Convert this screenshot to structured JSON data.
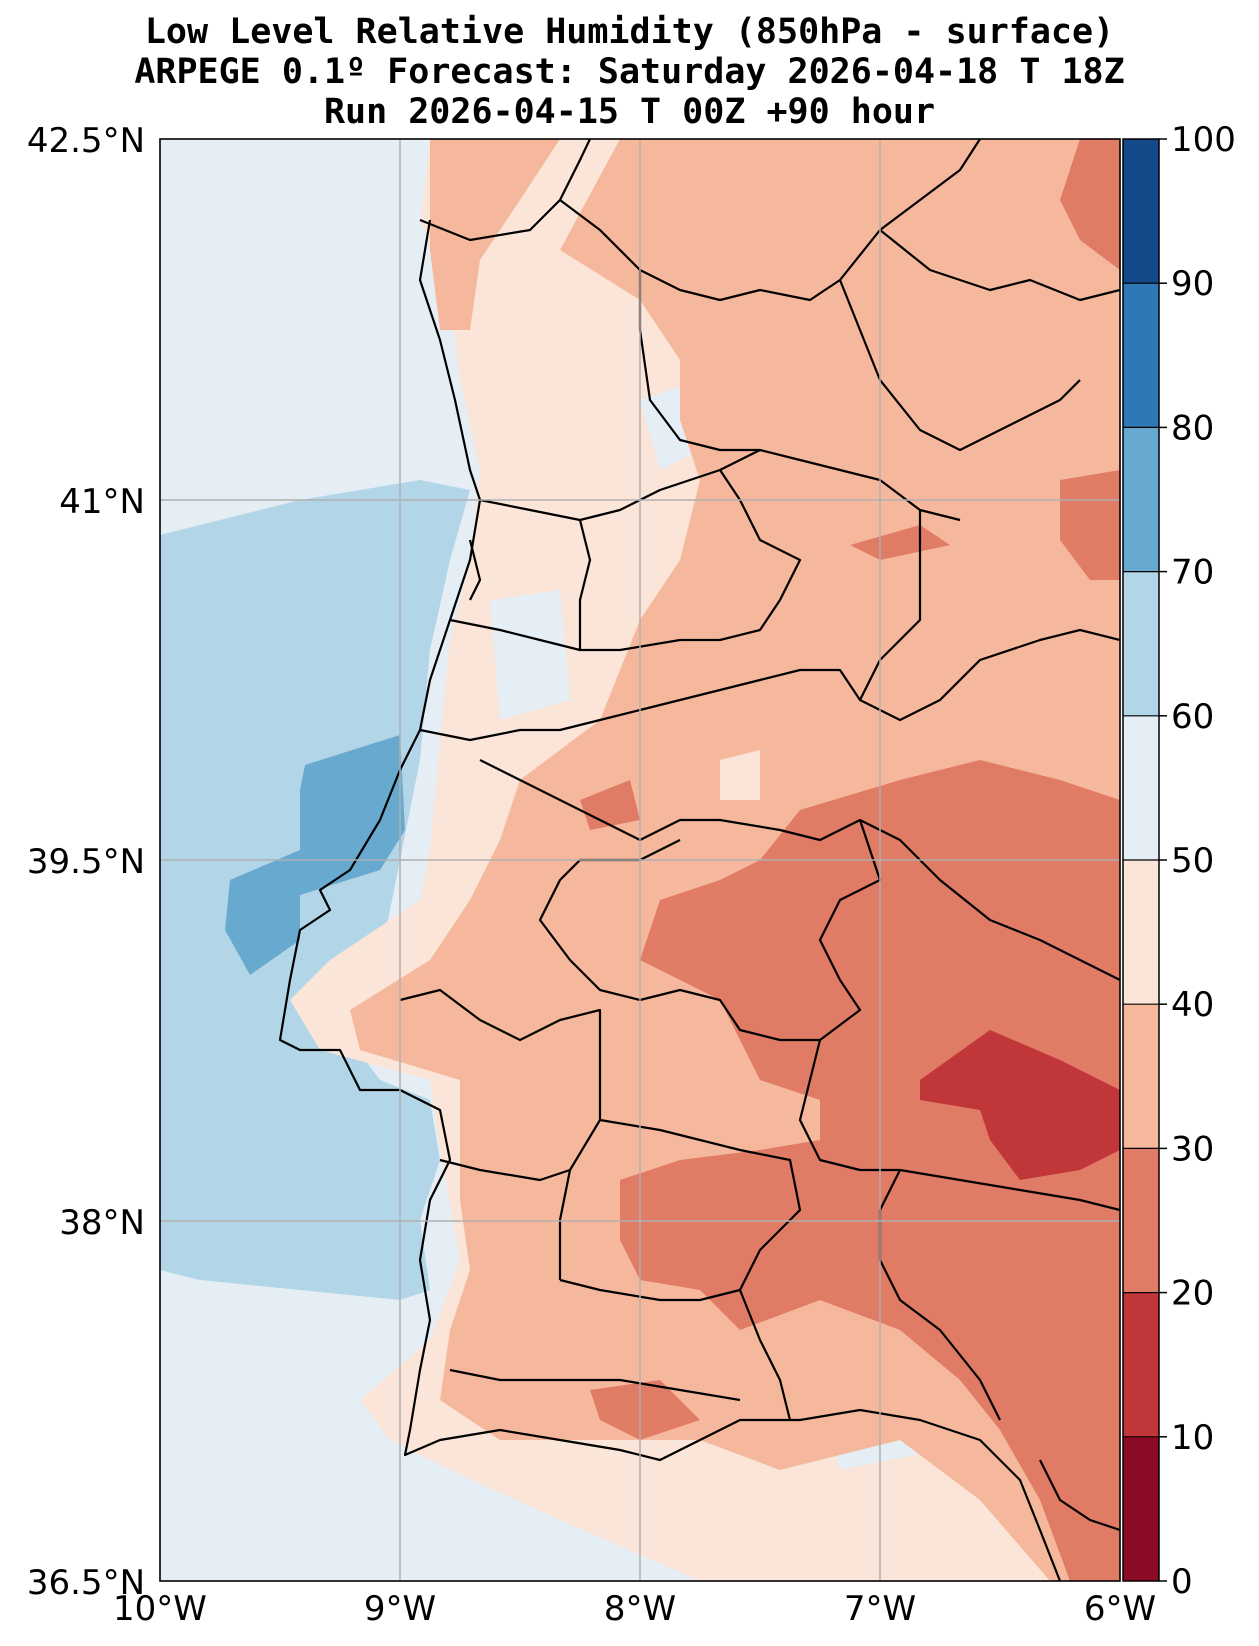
{
  "title": {
    "line1": "Low Level Relative Humidity (850hPa - surface)",
    "line2": "ARPEGE 0.1º Forecast: Saturday 2026-04-18 T 18Z",
    "line3": "Run 2026-04-15 T 00Z +90 hour"
  },
  "map": {
    "lon_range": [
      -10,
      -6
    ],
    "lat_range": [
      36.5,
      42.5
    ],
    "lon_ticks": [
      "10°W",
      "9°W",
      "8°W",
      "7°W",
      "6°W"
    ],
    "lat_ticks": [
      "42.5°N",
      "41°N",
      "39.5°N",
      "38°N",
      "36.5°N"
    ],
    "gridlines": true
  },
  "colorbar": {
    "ticks": [
      "0",
      "10",
      "20",
      "30",
      "40",
      "50",
      "60",
      "70",
      "80",
      "90",
      "100"
    ],
    "colors": [
      "#8b0a26",
      "#c13639",
      "#e07b65",
      "#f6b89c",
      "#fbe4d8",
      "#e5eef4",
      "#b2d5e7",
      "#68a9d0",
      "#2e78b5",
      "#144a8a"
    ]
  }
}
